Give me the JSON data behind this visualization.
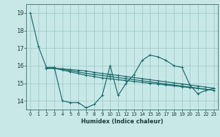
{
  "xlabel": "Humidex (Indice chaleur)",
  "background_color": "#c8e8e8",
  "grid_color": "#a0c8c8",
  "line_color": "#1a6b6b",
  "xlim": [
    -0.5,
    23.5
  ],
  "ylim": [
    13.5,
    19.5
  ],
  "yticks": [
    14,
    15,
    16,
    17,
    18,
    19
  ],
  "xticks": [
    0,
    1,
    2,
    3,
    4,
    5,
    6,
    7,
    8,
    9,
    10,
    11,
    12,
    13,
    14,
    15,
    16,
    17,
    18,
    19,
    20,
    21,
    22,
    23
  ],
  "lines": [
    {
      "x": [
        0,
        1,
        2,
        3,
        4,
        5,
        6,
        7,
        8,
        9,
        10,
        11,
        12,
        13,
        14,
        15,
        16,
        17,
        18,
        19,
        20,
        21,
        22,
        23
      ],
      "y": [
        19.0,
        17.1,
        15.9,
        15.9,
        14.0,
        13.9,
        13.9,
        13.6,
        13.8,
        14.3,
        16.0,
        14.3,
        15.0,
        15.5,
        16.3,
        16.6,
        16.5,
        16.3,
        16.0,
        15.9,
        14.9,
        14.4,
        14.6,
        14.7
      ]
    },
    {
      "x": [
        2,
        3,
        4,
        5,
        6,
        7,
        8,
        9,
        10,
        11,
        12,
        13,
        14,
        15,
        16,
        17,
        18,
        19,
        20,
        21,
        22,
        23
      ],
      "y": [
        15.85,
        15.85,
        15.75,
        15.65,
        15.55,
        15.45,
        15.38,
        15.3,
        15.25,
        15.2,
        15.15,
        15.1,
        15.05,
        15.0,
        14.95,
        14.9,
        14.85,
        14.8,
        14.75,
        14.7,
        14.65,
        14.6
      ]
    },
    {
      "x": [
        2,
        3,
        4,
        5,
        6,
        7,
        8,
        9,
        10,
        11,
        12,
        13,
        14,
        15,
        16,
        17,
        18,
        19,
        20,
        21,
        22,
        23
      ],
      "y": [
        15.85,
        15.85,
        15.8,
        15.72,
        15.64,
        15.56,
        15.5,
        15.44,
        15.38,
        15.32,
        15.26,
        15.2,
        15.14,
        15.08,
        15.02,
        14.96,
        14.9,
        14.84,
        14.78,
        14.72,
        14.66,
        14.6
      ]
    },
    {
      "x": [
        2,
        3,
        4,
        5,
        6,
        7,
        8,
        9,
        10,
        11,
        12,
        13,
        14,
        15,
        16,
        17,
        18,
        19,
        20,
        21,
        22,
        23
      ],
      "y": [
        15.85,
        15.85,
        15.82,
        15.78,
        15.74,
        15.7,
        15.62,
        15.55,
        15.5,
        15.45,
        15.38,
        15.32,
        15.26,
        15.2,
        15.14,
        15.08,
        15.02,
        14.96,
        14.9,
        14.84,
        14.78,
        14.72
      ]
    }
  ],
  "marker": "+",
  "markersize": 3,
  "linewidth": 0.9
}
